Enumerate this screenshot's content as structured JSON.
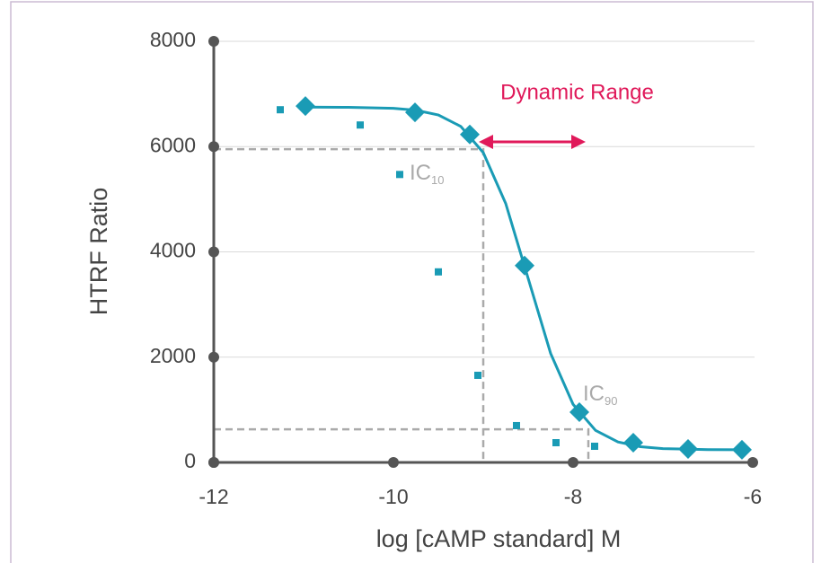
{
  "chart_data": {
    "type": "scatter",
    "xlabel": "log [cAMP standard] M",
    "ylabel": "HTRF Ratio",
    "xlim": [
      -12,
      -6
    ],
    "xticks": [
      -12,
      -10,
      -8,
      -6
    ],
    "ylim": [
      0,
      8000
    ],
    "yticks": [
      0,
      2000,
      4000,
      6000,
      8000
    ],
    "grid": true,
    "series": [
      {
        "mode": "line",
        "color": "#1a9bb5",
        "x": [
          -11,
          -10.5,
          -10,
          -9.75,
          -9.5,
          -9.25,
          -9,
          -8.75,
          -8.5,
          -8.25,
          -8,
          -7.75,
          -7.5,
          -7.25,
          -7,
          -6.5,
          -6.1
        ],
        "values": [
          6750,
          6746,
          6727,
          6691,
          6601,
          6383,
          5885,
          4919,
          3495,
          2071,
          1104,
          608,
          388,
          299,
          263,
          244,
          241
        ]
      },
      {
        "mode": "markers",
        "marker": "diamond",
        "color": "#1a9bb5",
        "x": [
          -10.98,
          -9.76,
          -9.15,
          -8.54,
          -7.93,
          -7.33,
          -6.72,
          -6.12
        ],
        "values": [
          6770,
          6650,
          6230,
          3740,
          955,
          375,
          256,
          240
        ]
      },
      {
        "mode": "markers",
        "marker": "square",
        "color": "#1a9bb5",
        "x": [
          -11.26,
          -10.37,
          -9.93,
          -9.5,
          -9.06,
          -8.63,
          -8.19,
          -7.76
        ],
        "values": [
          6700,
          6410,
          5470,
          3620,
          1655,
          700,
          375,
          307
        ]
      }
    ],
    "ic_lines": [
      {
        "label": "IC",
        "sub": "10",
        "x": -9.0,
        "y": 5950,
        "color": "#aaaaaa"
      },
      {
        "label": "IC",
        "sub": "90",
        "x": -7.83,
        "y": 630,
        "color": "#aaaaaa"
      }
    ],
    "range_arrow": {
      "text": "Dynamic Range",
      "x": [
        -9.05,
        -7.86
      ],
      "y": 6090,
      "color": "#e0195a"
    }
  }
}
